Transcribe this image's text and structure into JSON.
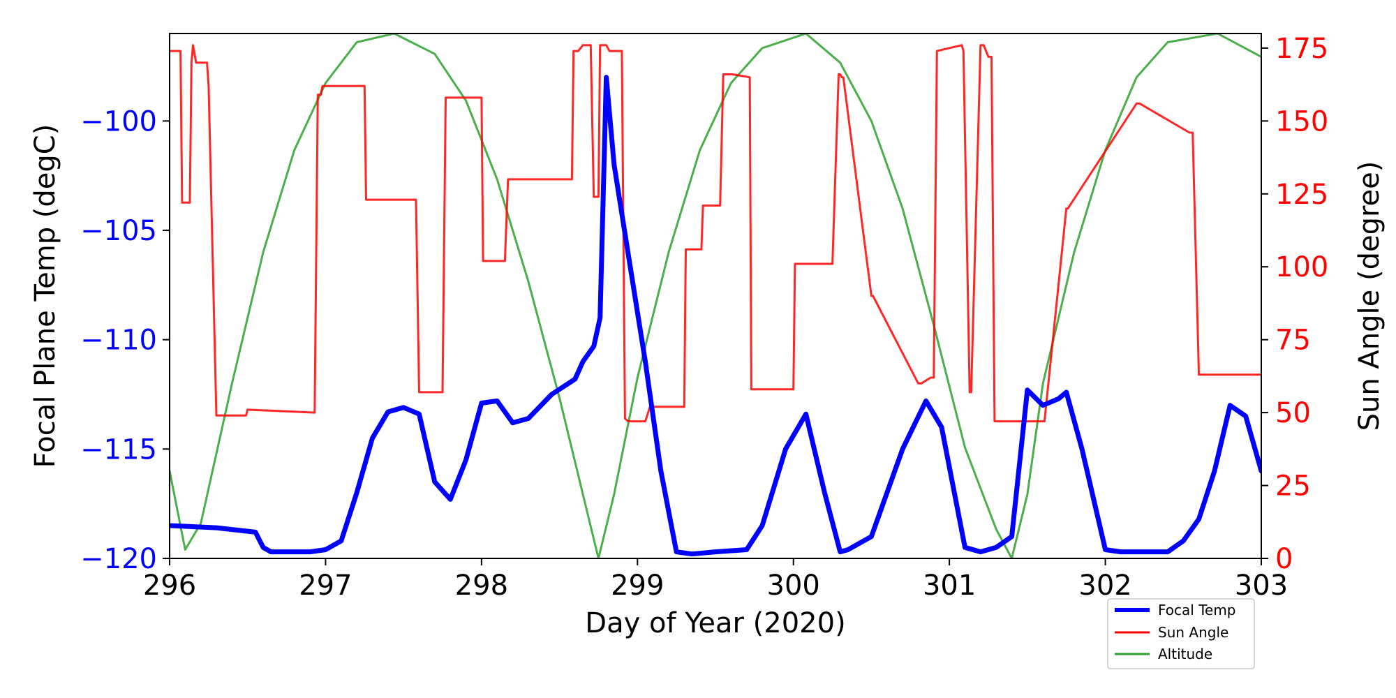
{
  "chart_data": {
    "type": "line",
    "xlabel": "Day of Year (2020)",
    "ylabel_left": "Focal Plane Temp (degC)",
    "ylabel_right": "Sun Angle (degree)",
    "xlim": [
      296,
      303
    ],
    "ylim_left": [
      -120,
      -96
    ],
    "ylim_right": [
      0,
      180
    ],
    "x_ticks": [
      296,
      297,
      298,
      299,
      300,
      301,
      302,
      303
    ],
    "y_left_ticks": [
      -100,
      -105,
      -110,
      -115,
      -120
    ],
    "y_right_ticks": [
      175,
      150,
      125,
      100,
      75,
      50,
      25,
      0
    ],
    "grid": false,
    "legend_position": "bottom-right",
    "colors": {
      "focal_temp": "#0000ff",
      "sun_angle": "#ff0000",
      "altitude": "#2ca02c",
      "left_ticks": "#0000ff",
      "right_ticks": "#ff0000"
    },
    "series": [
      {
        "name": "Focal Temp",
        "axis": "left",
        "x": [
          296.0,
          296.3,
          296.55,
          296.6,
          296.65,
          296.9,
          297.0,
          297.1,
          297.2,
          297.3,
          297.4,
          297.5,
          297.6,
          297.7,
          297.8,
          297.9,
          298.0,
          298.1,
          298.2,
          298.3,
          298.45,
          298.6,
          298.65,
          298.72,
          298.76,
          298.8,
          298.85,
          298.95,
          299.05,
          299.15,
          299.25,
          299.35,
          299.5,
          299.7,
          299.8,
          299.95,
          300.08,
          300.2,
          300.3,
          300.35,
          300.5,
          300.7,
          300.85,
          300.95,
          301.1,
          301.2,
          301.3,
          301.4,
          301.5,
          301.6,
          301.7,
          301.75,
          301.85,
          302.0,
          302.1,
          302.4,
          302.5,
          302.6,
          302.7,
          302.8,
          302.9,
          303.0
        ],
        "y": [
          -118.5,
          -118.6,
          -118.8,
          -119.5,
          -119.7,
          -119.7,
          -119.6,
          -119.2,
          -117.0,
          -114.5,
          -113.3,
          -113.1,
          -113.4,
          -116.5,
          -117.3,
          -115.5,
          -112.9,
          -112.8,
          -113.8,
          -113.6,
          -112.5,
          -111.8,
          -111.0,
          -110.3,
          -109.0,
          -98.0,
          -102.0,
          -106.5,
          -111.0,
          -116.0,
          -119.7,
          -119.8,
          -119.7,
          -119.6,
          -118.5,
          -115.0,
          -113.4,
          -117.0,
          -119.7,
          -119.6,
          -119.0,
          -115.0,
          -112.8,
          -114.0,
          -119.5,
          -119.7,
          -119.5,
          -119.0,
          -112.3,
          -113.0,
          -112.7,
          -112.4,
          -115.0,
          -119.6,
          -119.7,
          -119.7,
          -119.2,
          -118.2,
          -116.0,
          -113.0,
          -113.5,
          -116.0
        ]
      },
      {
        "name": "Sun Angle",
        "axis": "right",
        "x": [
          296.0,
          296.07,
          296.08,
          296.13,
          296.14,
          296.15,
          296.17,
          296.24,
          296.25,
          296.3,
          296.32,
          296.49,
          296.5,
          296.93,
          296.95,
          296.97,
          296.98,
          297.0,
          297.25,
          297.26,
          297.57,
          297.58,
          297.6,
          297.62,
          297.75,
          297.77,
          298.0,
          298.01,
          298.15,
          298.17,
          298.58,
          298.59,
          298.62,
          298.65,
          298.7,
          298.72,
          298.75,
          298.76,
          298.8,
          298.82,
          298.9,
          298.92,
          298.94,
          299.05,
          299.08,
          299.3,
          299.31,
          299.41,
          299.42,
          299.53,
          299.55,
          299.57,
          299.61,
          299.72,
          299.73,
          300.0,
          300.01,
          300.25,
          300.29,
          300.3,
          300.31,
          300.32,
          300.5,
          300.51,
          300.8,
          300.82,
          300.88,
          300.9,
          300.92,
          301.08,
          301.09,
          301.13,
          301.14,
          301.2,
          301.22,
          301.25,
          301.27,
          301.29,
          301.32,
          301.38,
          301.42,
          301.45,
          301.6,
          301.61,
          301.75,
          301.76,
          302.2,
          302.22,
          302.54,
          302.56,
          302.6,
          302.62,
          302.7,
          302.72,
          302.83,
          302.84,
          303.0
        ],
        "y": [
          174,
          174,
          122,
          122,
          170,
          176,
          170,
          170,
          162,
          49,
          49,
          49,
          51,
          50,
          159,
          159,
          162,
          162,
          162,
          123,
          123,
          123,
          57,
          57,
          57,
          158,
          158,
          102,
          102,
          130,
          130,
          174,
          174,
          176,
          176,
          124,
          124,
          176,
          176,
          174,
          174,
          48,
          47,
          47,
          52,
          52,
          106,
          106,
          121,
          121,
          166,
          166,
          166,
          165,
          58,
          58,
          101,
          101,
          166,
          166,
          165,
          165,
          90,
          90,
          60,
          60,
          62,
          62,
          174,
          176,
          174,
          57,
          57,
          176,
          176,
          172,
          172,
          47,
          47,
          47,
          47,
          47,
          47,
          47,
          120,
          120,
          156,
          156,
          146,
          146,
          63,
          63,
          63,
          63,
          63,
          63,
          63
        ]
      },
      {
        "name": "Altitude",
        "axis": "right",
        "x": [
          296.0,
          296.1,
          296.2,
          296.4,
          296.6,
          296.8,
          297.0,
          297.2,
          297.44,
          297.7,
          297.9,
          298.1,
          298.3,
          298.5,
          298.65,
          298.75,
          298.85,
          299.0,
          299.2,
          299.4,
          299.6,
          299.8,
          300.08,
          300.3,
          300.5,
          300.7,
          300.9,
          301.1,
          301.3,
          301.4,
          301.5,
          301.6,
          301.8,
          302.0,
          302.2,
          302.4,
          302.72,
          303.0
        ],
        "y": [
          30,
          3,
          12,
          60,
          105,
          140,
          163,
          177,
          180,
          173,
          157,
          130,
          95,
          55,
          22,
          0,
          22,
          62,
          105,
          140,
          163,
          175,
          180,
          170,
          150,
          120,
          80,
          38,
          10,
          0,
          22,
          60,
          105,
          140,
          165,
          177,
          180,
          172
        ]
      }
    ]
  }
}
